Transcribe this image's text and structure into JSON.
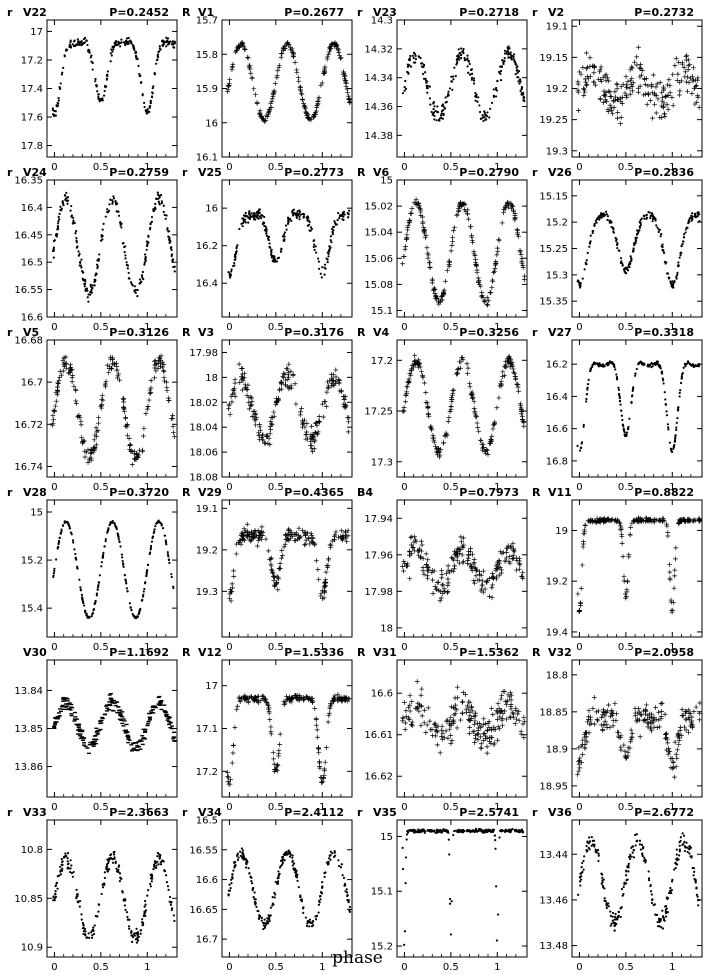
{
  "figure": {
    "xlabel": "phase"
  },
  "chart_data": [
    {
      "type": "scatter",
      "band": "r",
      "star": "V22",
      "period_label": "P=0.2452",
      "yticks": [
        "17",
        "17.2",
        "17.4",
        "17.6",
        "17.8"
      ],
      "ylim": [
        16.92,
        17.88
      ],
      "xticks": [
        "0",
        "0.5",
        "1"
      ],
      "xlim": [
        -0.08,
        1.32
      ],
      "marker": "dot",
      "curve": {
        "kind": "double",
        "mean": 17.3,
        "amp": 0.3,
        "base": 17.02,
        "depth": 0.62,
        "width": 0.07,
        "noise": 0.03
      }
    },
    {
      "type": "scatter",
      "band": "R",
      "star": "V1",
      "period_label": "P=0.2677",
      "yticks": [
        "15.7",
        "15.8",
        "15.9",
        "16",
        "16.1"
      ],
      "ylim": [
        15.7,
        16.1
      ],
      "xticks": [
        "0",
        "0.5",
        "1"
      ],
      "xlim": [
        -0.08,
        1.32
      ],
      "marker": "plus",
      "curve": {
        "kind": "sine2",
        "mean": 15.88,
        "amp": 0.11,
        "noise": 0.008
      }
    },
    {
      "type": "scatter",
      "band": "r",
      "star": "V23",
      "period_label": "P=0.2718",
      "yticks": [
        "14.3",
        "14.32",
        "14.34",
        "14.36",
        "14.38"
      ],
      "ylim": [
        14.3,
        14.395
      ],
      "xticks": [
        "0",
        "0.5",
        "1"
      ],
      "xlim": [
        -0.08,
        1.32
      ],
      "marker": "dot",
      "curve": {
        "kind": "sine2",
        "mean": 14.345,
        "amp": 0.022,
        "noise": 0.006
      }
    },
    {
      "type": "scatter",
      "band": "r",
      "star": "V2",
      "period_label": "P=0.2732",
      "yticks": [
        "19.1",
        "19.15",
        "19.2",
        "19.25",
        "19.3"
      ],
      "ylim": [
        19.09,
        19.31
      ],
      "xticks": [
        "0",
        "0.5",
        "1"
      ],
      "xlim": [
        -0.08,
        1.32
      ],
      "marker": "plus",
      "curve": {
        "kind": "sine2",
        "mean": 19.2,
        "amp": 0.025,
        "noise": 0.035
      }
    },
    {
      "type": "scatter",
      "band": "r",
      "star": "V24",
      "period_label": "P=0.2759",
      "yticks": [
        "16.35",
        "16.4",
        "16.45",
        "16.5",
        "16.55",
        "16.6"
      ],
      "ylim": [
        16.35,
        16.6
      ],
      "xticks": [
        "0",
        "0.5",
        "1"
      ],
      "xlim": [
        -0.08,
        1.32
      ],
      "marker": "dot",
      "curve": {
        "kind": "sine2",
        "mean": 16.47,
        "amp": 0.085,
        "noise": 0.012
      }
    },
    {
      "type": "scatter",
      "band": "r",
      "star": "V25",
      "period_label": "P=0.2773",
      "yticks": [
        "16",
        "16.2",
        "16.4"
      ],
      "ylim": [
        15.85,
        16.58
      ],
      "xticks": [
        "0",
        "0.5",
        "1"
      ],
      "xlim": [
        -0.08,
        1.32
      ],
      "marker": "dot",
      "curve": {
        "kind": "double",
        "mean": 16.15,
        "amp": 0.25,
        "base": 15.98,
        "depth": 0.42,
        "width": 0.08,
        "noise": 0.03
      }
    },
    {
      "type": "scatter",
      "band": "R",
      "star": "V6",
      "period_label": "P=0.2790",
      "yticks": [
        "15",
        "15.02",
        "15.04",
        "15.06",
        "15.08",
        "15.1"
      ],
      "ylim": [
        15.0,
        15.105
      ],
      "xticks": [
        "0",
        "0.5",
        "1"
      ],
      "xlim": [
        -0.08,
        1.32
      ],
      "marker": "plus",
      "curve": {
        "kind": "sine2",
        "mean": 15.055,
        "amp": 0.038,
        "noise": 0.003
      }
    },
    {
      "type": "scatter",
      "band": "r",
      "star": "V26",
      "period_label": "P=0.2836",
      "yticks": [
        "15.15",
        "15.2",
        "15.25",
        "15.3",
        "15.35"
      ],
      "ylim": [
        15.12,
        15.38
      ],
      "xticks": [
        "0",
        "0.5",
        "1"
      ],
      "xlim": [
        -0.08,
        1.32
      ],
      "marker": "dot",
      "curve": {
        "kind": "double",
        "mean": 15.25,
        "amp": 0.1,
        "base": 15.16,
        "depth": 0.18,
        "width": 0.09,
        "noise": 0.008
      }
    },
    {
      "type": "scatter",
      "band": "r",
      "star": "V5",
      "period_label": "P=0.3126",
      "yticks": [
        "16.68",
        "16.7",
        "16.72",
        "16.74"
      ],
      "ylim": [
        16.68,
        16.745
      ],
      "xticks": [
        "0",
        "0.5",
        "1"
      ],
      "xlim": [
        -0.08,
        1.32
      ],
      "marker": "plus",
      "curve": {
        "kind": "sine2",
        "mean": 16.713,
        "amp": 0.023,
        "noise": 0.004
      }
    },
    {
      "type": "scatter",
      "band": "R",
      "star": "V3",
      "period_label": "P=0.3176",
      "yticks": [
        "17.98",
        "18",
        "18.02",
        "18.04",
        "18.06",
        "18.08"
      ],
      "ylim": [
        17.97,
        18.08
      ],
      "xticks": [
        "0",
        "0.5",
        "1"
      ],
      "xlim": [
        -0.08,
        1.32
      ],
      "marker": "plus",
      "curve": {
        "kind": "sine2",
        "mean": 18.025,
        "amp": 0.025,
        "noise": 0.01
      }
    },
    {
      "type": "scatter",
      "band": "R",
      "star": "V4",
      "period_label": "P=0.3256",
      "yticks": [
        "17.2",
        "17.25",
        "17.3"
      ],
      "ylim": [
        17.18,
        17.315
      ],
      "xticks": [
        "0",
        "0.5",
        "1"
      ],
      "xlim": [
        -0.08,
        1.32
      ],
      "marker": "plus",
      "curve": {
        "kind": "sine2",
        "mean": 17.245,
        "amp": 0.045,
        "noise": 0.005
      }
    },
    {
      "type": "scatter",
      "band": "r",
      "star": "V27",
      "period_label": "P=0.3318",
      "yticks": [
        "16.2",
        "16.4",
        "16.6",
        "16.8"
      ],
      "ylim": [
        16.05,
        16.9
      ],
      "xticks": [
        "0",
        "0.5",
        "1"
      ],
      "xlim": [
        -0.08,
        1.32
      ],
      "marker": "dot",
      "curve": {
        "kind": "double",
        "mean": 16.4,
        "amp": 0.3,
        "base": 16.15,
        "depth": 0.65,
        "width": 0.06,
        "noise": 0.01
      }
    },
    {
      "type": "scatter",
      "band": "r",
      "star": "V28",
      "period_label": "P=0.3720",
      "yticks": [
        "15",
        "15.2",
        "15.4"
      ],
      "ylim": [
        14.95,
        15.52
      ],
      "xticks": [
        "0",
        "0.5",
        "1"
      ],
      "xlim": [
        -0.08,
        1.32
      ],
      "marker": "dot",
      "curve": {
        "kind": "sine2",
        "mean": 15.24,
        "amp": 0.2,
        "noise": 0.005
      }
    },
    {
      "type": "scatter",
      "band": "R",
      "star": "V29",
      "period_label": "P=0.4365",
      "yticks": [
        "19.1",
        "19.2",
        "19.3"
      ],
      "ylim": [
        19.08,
        19.41
      ],
      "xticks": [
        "0",
        "0.5",
        "1"
      ],
      "xlim": [
        -0.08,
        1.32
      ],
      "marker": "plus",
      "curve": {
        "kind": "double",
        "mean": 19.18,
        "amp": 0.04,
        "base": 19.16,
        "depth": 0.16,
        "width": 0.05,
        "noise": 0.02
      }
    },
    {
      "type": "scatter",
      "band": "B4",
      "star": "",
      "period_label": "P=0.7973",
      "yticks": [
        "17.94",
        "17.96",
        "17.98",
        "18"
      ],
      "ylim": [
        17.93,
        18.005
      ],
      "xticks": [
        "0",
        "0.5",
        "1"
      ],
      "xlim": [
        -0.08,
        1.32
      ],
      "marker": "plus",
      "curve": {
        "kind": "sine2",
        "mean": 17.968,
        "amp": 0.01,
        "noise": 0.008
      }
    },
    {
      "type": "scatter",
      "band": "R",
      "star": "V11",
      "period_label": "P=0.8822",
      "yticks": [
        "19",
        "19.2",
        "19.4"
      ],
      "ylim": [
        18.88,
        19.42
      ],
      "xticks": [
        "0",
        "0.5",
        "1"
      ],
      "xlim": [
        -0.08,
        1.32
      ],
      "marker": "plus",
      "curve": {
        "kind": "double",
        "mean": 18.96,
        "amp": 0.0,
        "base": 18.96,
        "depth": 0.36,
        "width": 0.025,
        "noise": 0.008
      }
    },
    {
      "type": "scatter",
      "band": "",
      "star": "V30",
      "period_label": "P=1.1692",
      "yticks": [
        "13.84",
        "13.85",
        "13.86"
      ],
      "ylim": [
        13.832,
        13.868
      ],
      "xticks": [
        "0",
        "0.5",
        "1"
      ],
      "xlim": [
        -0.08,
        1.32
      ],
      "marker": "dash",
      "curve": {
        "kind": "sine2",
        "mean": 13.849,
        "amp": 0.006,
        "noise": 0.002
      }
    },
    {
      "type": "scatter",
      "band": "R",
      "star": "V12",
      "period_label": "P=1.5336",
      "yticks": [
        "17",
        "17.1",
        "17.2"
      ],
      "ylim": [
        16.94,
        17.26
      ],
      "xticks": [
        "0",
        "0.5",
        "1"
      ],
      "xlim": [
        -0.08,
        1.32
      ],
      "marker": "plus",
      "curve": {
        "kind": "double",
        "mean": 17.03,
        "amp": 0.0,
        "base": 17.03,
        "depth": 0.2,
        "width": 0.04,
        "noise": 0.008
      }
    },
    {
      "type": "scatter",
      "band": "R",
      "star": "V31",
      "period_label": "P=1.5362",
      "yticks": [
        "16.6",
        "16.61",
        "16.62"
      ],
      "ylim": [
        16.592,
        16.625
      ],
      "xticks": [
        "0",
        "0.5",
        "1"
      ],
      "xlim": [
        -0.08,
        1.32
      ],
      "marker": "plus",
      "curve": {
        "kind": "sine2",
        "mean": 16.607,
        "amp": 0.004,
        "noise": 0.005
      }
    },
    {
      "type": "scatter",
      "band": "R",
      "star": "V32",
      "period_label": "P=2.0958",
      "yticks": [
        "18.8",
        "18.85",
        "18.9",
        "18.95"
      ],
      "ylim": [
        18.78,
        18.965
      ],
      "xticks": [
        "0",
        "0.5",
        "1"
      ],
      "xlim": [
        -0.08,
        1.32
      ],
      "marker": "plus",
      "curve": {
        "kind": "double",
        "mean": 18.86,
        "amp": 0.015,
        "base": 18.855,
        "depth": 0.07,
        "width": 0.05,
        "noise": 0.02
      }
    },
    {
      "type": "scatter",
      "band": "r",
      "star": "V33",
      "period_label": "P=2.3663",
      "yticks": [
        "10.8",
        "10.85",
        "10.9"
      ],
      "ylim": [
        10.77,
        10.91
      ],
      "xticks": [
        "0",
        "0.5",
        "1"
      ],
      "xlim": [
        -0.08,
        1.32
      ],
      "marker": "dot",
      "curve": {
        "kind": "sine2",
        "mean": 10.85,
        "amp": 0.04,
        "noise": 0.008
      }
    },
    {
      "type": "scatter",
      "band": "r",
      "star": "V34",
      "period_label": "P=2.4112",
      "yticks": [
        "16.5",
        "16.55",
        "16.6",
        "16.65",
        "16.7"
      ],
      "ylim": [
        16.5,
        16.73
      ],
      "xticks": [
        "0",
        "0.5",
        "1"
      ],
      "xlim": [
        -0.08,
        1.32
      ],
      "marker": "dot",
      "curve": {
        "kind": "sine2",
        "mean": 16.615,
        "amp": 0.06,
        "noise": 0.01
      }
    },
    {
      "type": "scatter",
      "band": "r",
      "star": "V35",
      "period_label": "P=2.5741",
      "yticks": [
        "15",
        "15.1",
        "15.2"
      ],
      "ylim": [
        14.97,
        15.22
      ],
      "xticks": [
        "0",
        "0.5",
        "1"
      ],
      "xlim": [
        -0.08,
        1.32
      ],
      "marker": "dot",
      "curve": {
        "kind": "double",
        "mean": 14.99,
        "amp": 0.0,
        "base": 14.99,
        "depth": 0.22,
        "width": 0.01,
        "noise": 0.003
      }
    },
    {
      "type": "scatter",
      "band": "r",
      "star": "V36",
      "period_label": "P=2.6772",
      "yticks": [
        "13.44",
        "13.46",
        "13.48"
      ],
      "ylim": [
        13.425,
        13.485
      ],
      "xticks": [
        "0",
        "0.5",
        "1"
      ],
      "xlim": [
        -0.08,
        1.32
      ],
      "marker": "dot",
      "curve": {
        "kind": "sine2",
        "mean": 13.452,
        "amp": 0.018,
        "noise": 0.004
      }
    }
  ]
}
